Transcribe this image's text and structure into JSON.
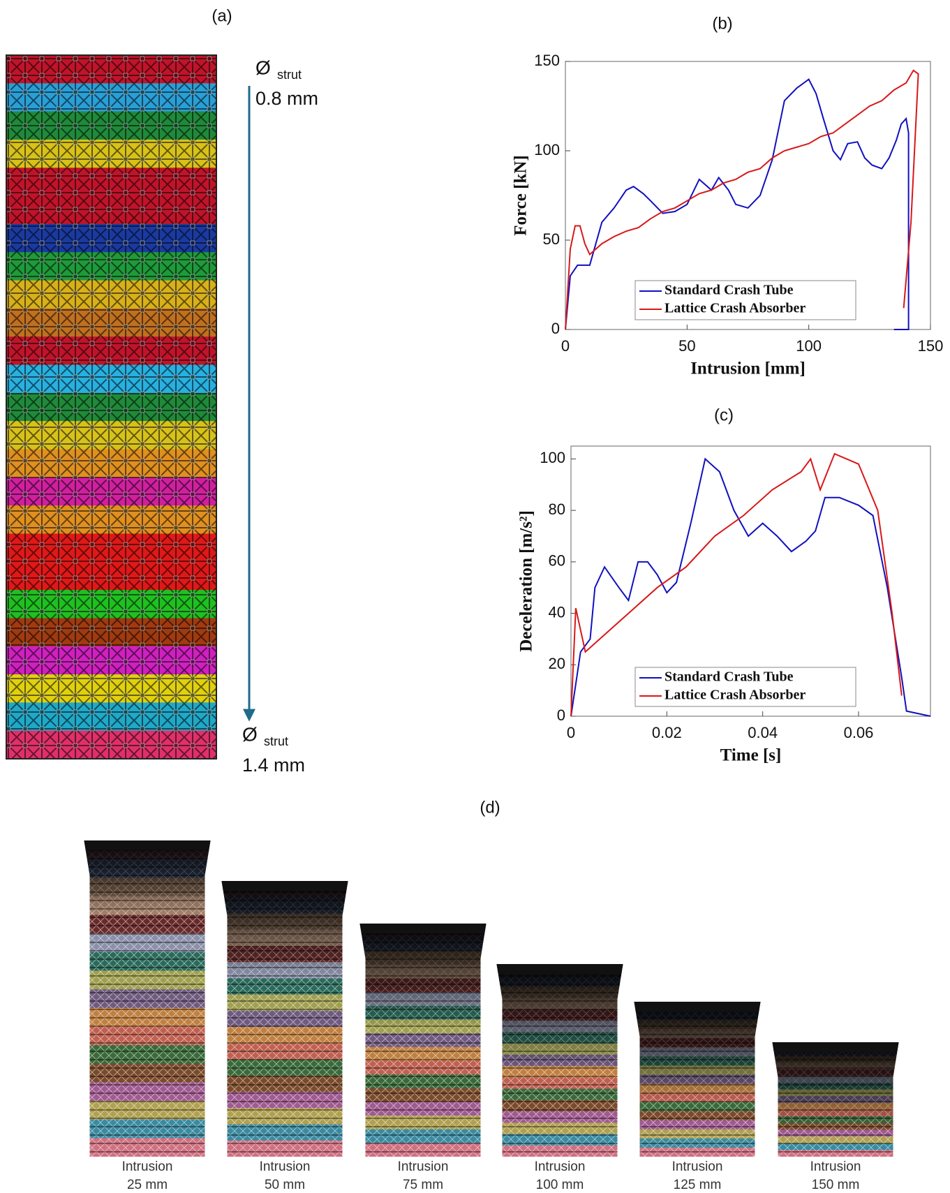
{
  "panels": {
    "a": "(a)",
    "b": "(b)",
    "c": "(c)",
    "d": "(d)"
  },
  "strut_top": {
    "symbol": "Ø",
    "sub": "strut",
    "value": "0.8 mm"
  },
  "strut_bottom": {
    "symbol": "Ø",
    "sub": "strut",
    "value": "1.4 mm"
  },
  "captions": [
    [
      "Intrusion",
      "25 mm"
    ],
    [
      "Intrusion",
      "50 mm"
    ],
    [
      "Intrusion",
      "75 mm"
    ],
    [
      "Intrusion",
      "100 mm"
    ],
    [
      "Intrusion",
      "125 mm"
    ],
    [
      "Intrusion",
      "150 mm"
    ]
  ],
  "chart_data": [
    {
      "type": "line",
      "xlabel": "Intrusion [mm]",
      "ylabel": "Force [kN]",
      "xlim": [
        0,
        150
      ],
      "ylim": [
        0,
        150
      ],
      "xticks": [
        0,
        50,
        100,
        150
      ],
      "yticks": [
        0,
        50,
        100,
        150
      ],
      "legend": "lower right",
      "series": [
        {
          "name": "Standard Crash Tube",
          "color": "#1010c0",
          "x": [
            0,
            2,
            5,
            10,
            15,
            20,
            25,
            28,
            32,
            35,
            40,
            45,
            50,
            55,
            60,
            63,
            67,
            70,
            75,
            80,
            85,
            90,
            95,
            100,
            103,
            106,
            110,
            113,
            116,
            120,
            123,
            126,
            130,
            133,
            136,
            138,
            140,
            141,
            141,
            139,
            135
          ],
          "values": [
            0,
            30,
            36,
            36,
            60,
            68,
            78,
            80,
            76,
            72,
            65,
            66,
            70,
            84,
            78,
            85,
            78,
            70,
            68,
            75,
            95,
            128,
            135,
            140,
            132,
            118,
            100,
            95,
            104,
            105,
            96,
            92,
            90,
            96,
            106,
            115,
            118,
            110,
            0,
            0,
            0
          ]
        },
        {
          "name": "Lattice Crash Absorber",
          "color": "#d81818",
          "x": [
            0,
            2,
            4,
            6,
            8,
            10,
            15,
            20,
            25,
            30,
            35,
            40,
            45,
            50,
            55,
            60,
            65,
            70,
            75,
            80,
            85,
            90,
            95,
            100,
            105,
            110,
            115,
            120,
            125,
            130,
            135,
            140,
            143,
            145,
            142,
            139
          ],
          "values": [
            0,
            45,
            58,
            58,
            48,
            42,
            48,
            52,
            55,
            57,
            62,
            66,
            68,
            72,
            76,
            78,
            82,
            84,
            88,
            90,
            96,
            100,
            102,
            104,
            108,
            110,
            115,
            120,
            125,
            128,
            134,
            138,
            145,
            143,
            60,
            12
          ]
        }
      ]
    },
    {
      "type": "line",
      "xlabel": "Time [s]",
      "ylabel": "Deceleration [m/s²]",
      "xlim": [
        0,
        0.075
      ],
      "ylim": [
        0,
        105
      ],
      "xticks": [
        0,
        0.02,
        0.04,
        0.06
      ],
      "yticks": [
        0,
        20,
        40,
        60,
        80,
        100
      ],
      "legend": "lower right",
      "series": [
        {
          "name": "Standard Crash Tube",
          "color": "#1010c0",
          "x": [
            0,
            0.002,
            0.004,
            0.005,
            0.007,
            0.01,
            0.012,
            0.014,
            0.016,
            0.018,
            0.02,
            0.022,
            0.025,
            0.028,
            0.031,
            0.034,
            0.037,
            0.04,
            0.043,
            0.046,
            0.049,
            0.051,
            0.053,
            0.056,
            0.06,
            0.063,
            0.066,
            0.069,
            0.07,
            0.075
          ],
          "values": [
            0,
            25,
            30,
            50,
            58,
            50,
            45,
            60,
            60,
            55,
            48,
            52,
            75,
            100,
            95,
            80,
            70,
            75,
            70,
            64,
            68,
            72,
            85,
            85,
            82,
            78,
            50,
            15,
            2,
            0
          ]
        },
        {
          "name": "Lattice Crash Absorber",
          "color": "#d81818",
          "x": [
            0,
            0.001,
            0.003,
            0.006,
            0.012,
            0.018,
            0.024,
            0.03,
            0.036,
            0.042,
            0.048,
            0.05,
            0.052,
            0.055,
            0.06,
            0.064,
            0.067,
            0.069
          ],
          "values": [
            0,
            42,
            25,
            30,
            40,
            50,
            58,
            70,
            78,
            88,
            95,
            100,
            88,
            102,
            98,
            80,
            40,
            8
          ]
        }
      ]
    }
  ]
}
